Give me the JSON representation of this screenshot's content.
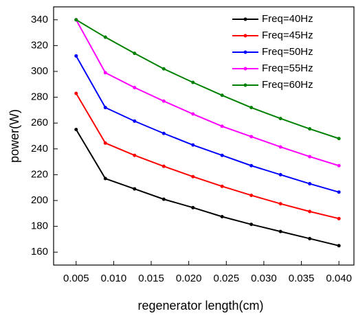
{
  "chart_data": {
    "type": "line",
    "x_label": "regenerator length(cm)",
    "y_label": "power(W)",
    "x": [
      0.005,
      0.00889,
      0.01278,
      0.01667,
      0.02056,
      0.02444,
      0.02833,
      0.03222,
      0.03611,
      0.04
    ],
    "series": [
      {
        "name": "Freq=40Hz",
        "color": "#000000",
        "values": [
          255,
          217,
          209,
          201,
          194.5,
          187.5,
          181.5,
          176,
          170.5,
          165
        ]
      },
      {
        "name": "Freq=45Hz",
        "color": "#ff0000",
        "values": [
          283,
          244.5,
          235,
          226.5,
          218.5,
          211,
          204,
          197.5,
          191.5,
          186
        ]
      },
      {
        "name": "Freq=50Hz",
        "color": "#0000ff",
        "values": [
          312,
          272,
          261.5,
          252,
          243,
          235,
          227,
          220,
          213,
          206.5
        ]
      },
      {
        "name": "Freq=55Hz",
        "color": "#ff00ff",
        "values": [
          340,
          299,
          287.5,
          277,
          267,
          257.5,
          249.5,
          241.5,
          234,
          227
        ]
      },
      {
        "name": "Freq=60Hz",
        "color": "#008000",
        "values": [
          340,
          326.5,
          314,
          302,
          291.5,
          281.5,
          272,
          263.5,
          255.5,
          248
        ]
      }
    ],
    "xlim": [
      0.002,
      0.042
    ],
    "xticks": [
      0.005,
      {
        "value": 0.01,
        "label": "0.010"
      },
      0.015,
      {
        "value": 0.02,
        "label": "0.020"
      },
      0.025,
      {
        "value": 0.03,
        "label": "0.030"
      },
      0.035,
      {
        "value": 0.04,
        "label": "0.040"
      }
    ],
    "ylim": [
      150,
      350
    ],
    "yticks": [
      160,
      180,
      200,
      220,
      240,
      260,
      280,
      300,
      320,
      340
    ],
    "legend": "upper right"
  }
}
